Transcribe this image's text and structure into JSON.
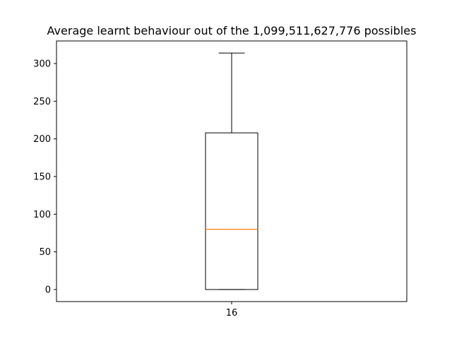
{
  "chart_data": {
    "type": "box",
    "title": "Average learnt behaviour out of the 1,099,511,627,776 possibles",
    "xlabel": "",
    "ylabel": "",
    "categories": [
      "16"
    ],
    "boxes": [
      {
        "category": "16",
        "whisker_low": 0,
        "q1": 0,
        "median": 80,
        "q3": 208,
        "whisker_high": 314
      }
    ],
    "ylim": [
      -16,
      330
    ],
    "yticks": [
      0,
      50,
      100,
      150,
      200,
      250,
      300
    ],
    "grid": false,
    "colors": {
      "box": "#000000",
      "median": "#ff7f0e",
      "axes": "#000000"
    }
  }
}
